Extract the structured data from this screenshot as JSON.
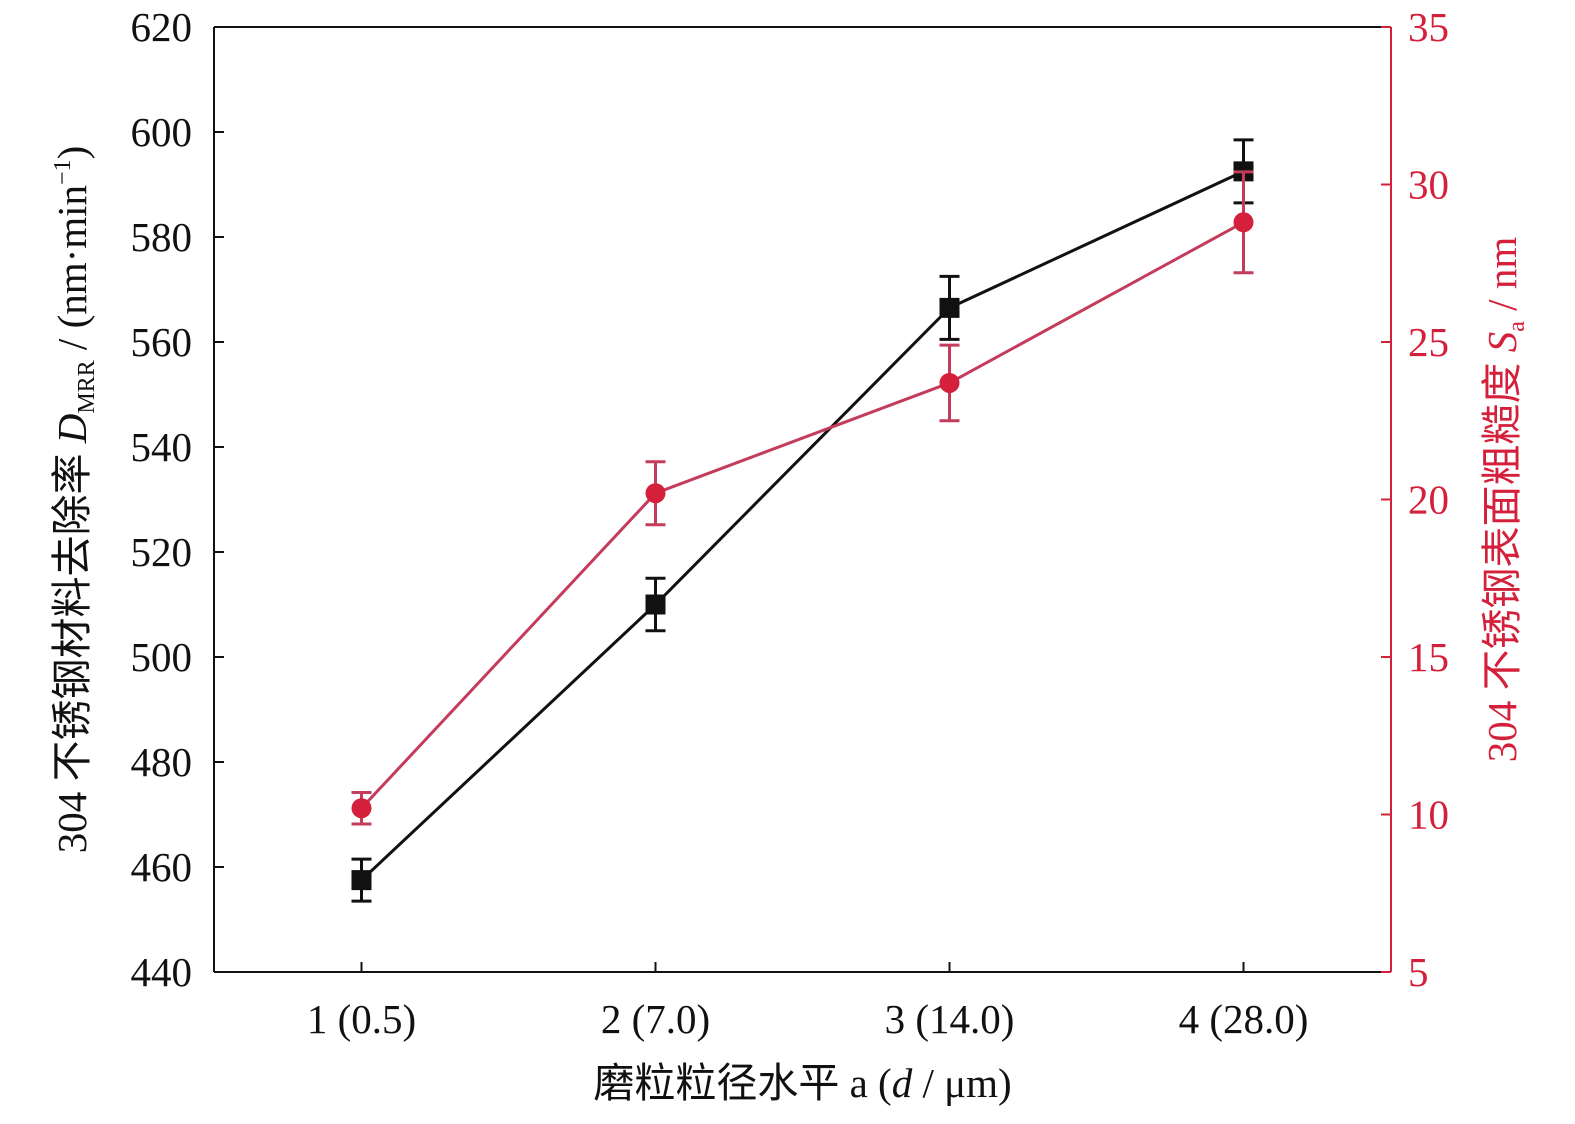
{
  "chart_data": {
    "type": "line",
    "categories": [
      "1 (0.5)",
      "2 (7.0)",
      "3 (14.0)",
      "4 (28.0)"
    ],
    "xlabel": "磨粒粒径水平 a (d / μm)",
    "xlabel_parts": {
      "prefix": "磨粒粒径水平 a (",
      "italic": "d",
      "suffix": " / μm)"
    },
    "y_left": {
      "label_parts": {
        "prefix": "304 不锈钢材料去除率 ",
        "italic": "D",
        "subscript": "MRR",
        "middle": " / (nm·min",
        "superscript": "−1",
        "suffix": ")"
      },
      "ylim": [
        440,
        620
      ],
      "ticks": [
        440,
        460,
        480,
        500,
        520,
        540,
        560,
        580,
        600,
        620
      ],
      "color": "#111111"
    },
    "y_right": {
      "label_parts": {
        "prefix": "304 不锈钢表面粗糙度 ",
        "italic": "S",
        "subscript": "a",
        "suffix": " / nm"
      },
      "ylim": [
        5,
        35
      ],
      "ticks": [
        5,
        10,
        15,
        20,
        25,
        30,
        35
      ],
      "color": "#d4203a"
    },
    "series": [
      {
        "axis": "left",
        "marker": "square",
        "color": "#111111",
        "values": [
          457.5,
          510,
          566.5,
          592.5
        ],
        "errors": [
          4,
          5,
          6,
          6
        ]
      },
      {
        "axis": "right",
        "marker": "circle",
        "color": "#d4203a",
        "line_color": "#c43c5c",
        "values": [
          10.2,
          20.2,
          23.7,
          28.8
        ],
        "errors": [
          0.5,
          1.0,
          1.2,
          1.6
        ]
      }
    ],
    "grid": false,
    "legend": "none"
  }
}
